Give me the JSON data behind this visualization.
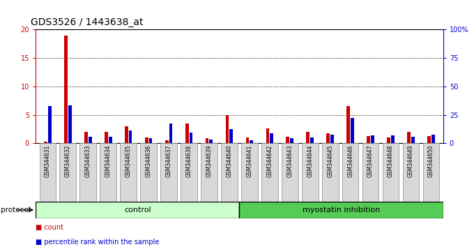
{
  "title": "GDS3526 / 1443638_at",
  "samples": [
    "GSM344631",
    "GSM344632",
    "GSM344633",
    "GSM344634",
    "GSM344635",
    "GSM344636",
    "GSM344637",
    "GSM344638",
    "GSM344639",
    "GSM344640",
    "GSM344641",
    "GSM344642",
    "GSM344643",
    "GSM344644",
    "GSM344645",
    "GSM344646",
    "GSM344647",
    "GSM344648",
    "GSM344649",
    "GSM344650"
  ],
  "count": [
    0.3,
    19.0,
    2.0,
    2.0,
    3.0,
    1.0,
    0.5,
    3.5,
    0.9,
    5.0,
    1.0,
    2.6,
    1.2,
    2.0,
    1.7,
    6.5,
    1.3,
    1.0,
    2.0,
    1.3
  ],
  "percentile": [
    33.0,
    33.5,
    6.0,
    6.0,
    11.0,
    4.5,
    17.5,
    9.5,
    3.5,
    12.5,
    2.5,
    9.0,
    4.5,
    5.0,
    7.5,
    22.5,
    7.0,
    7.0,
    6.0,
    7.5
  ],
  "count_color": "#cc0000",
  "percentile_color": "#0000cc",
  "ylim_left": [
    0,
    20
  ],
  "ylim_right": [
    0,
    100
  ],
  "yticks_left": [
    0,
    5,
    10,
    15,
    20
  ],
  "yticks_right": [
    0,
    25,
    50,
    75,
    100
  ],
  "ytick_labels_right": [
    "0",
    "25",
    "50",
    "75",
    "100%"
  ],
  "ytick_labels_left": [
    "0",
    "5",
    "10",
    "15",
    "20"
  ],
  "gridlines_at": [
    5,
    10,
    15
  ],
  "control_samples": 10,
  "control_label": "control",
  "treatment_label": "myostatin inhibition",
  "protocol_label": "protocol",
  "legend_count": "count",
  "legend_percentile": "percentile rank within the sample",
  "bg_color_plot": "#ffffff",
  "bg_color_xticklabels": "#d8d8d8",
  "control_bg": "#ccffcc",
  "treatment_bg": "#55cc55",
  "title_fontsize": 10,
  "tick_fontsize": 7,
  "bar_width": 0.3
}
